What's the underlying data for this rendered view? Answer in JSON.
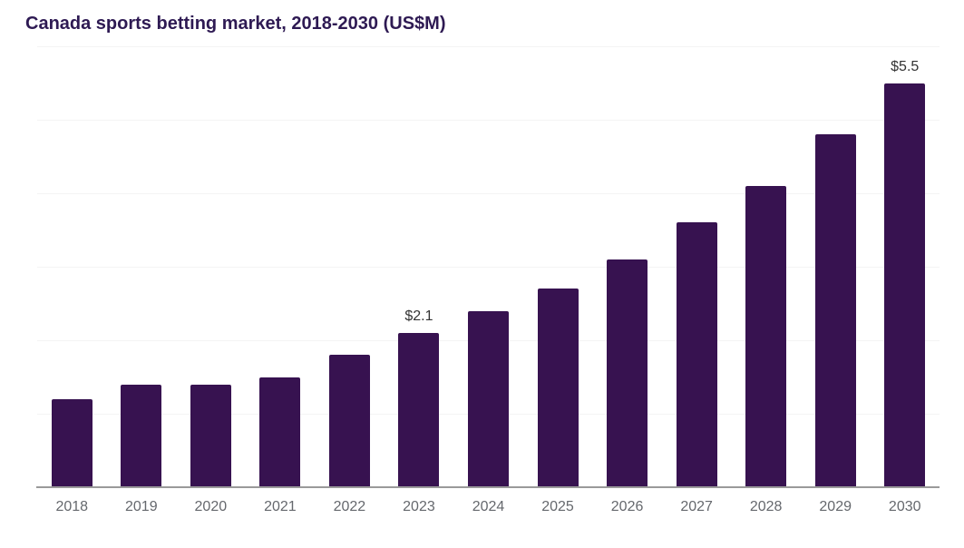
{
  "chart_data": {
    "type": "bar",
    "title": "Canada sports betting market, 2018-2030 (US$M)",
    "xlabel": "",
    "ylabel": "",
    "categories": [
      "2018",
      "2019",
      "2020",
      "2021",
      "2022",
      "2023",
      "2024",
      "2025",
      "2026",
      "2027",
      "2028",
      "2029",
      "2030"
    ],
    "values": [
      1.2,
      1.4,
      1.4,
      1.5,
      1.8,
      2.1,
      2.4,
      2.7,
      3.1,
      3.6,
      4.1,
      4.8,
      5.5
    ],
    "data_labels": {
      "2023": "$2.1",
      "2030": "$5.5"
    },
    "ylim": [
      0,
      6
    ],
    "gridline_step": 1,
    "grid": "horizontal",
    "legend": "none",
    "y_axis_ticks_visible": false,
    "colors": {
      "bar": "#371250",
      "title": "#2e1a53",
      "axis_line": "#9a9a9a",
      "gridline": "#f4f4f4",
      "tick_label": "#65686d",
      "data_label": "#333333"
    }
  }
}
